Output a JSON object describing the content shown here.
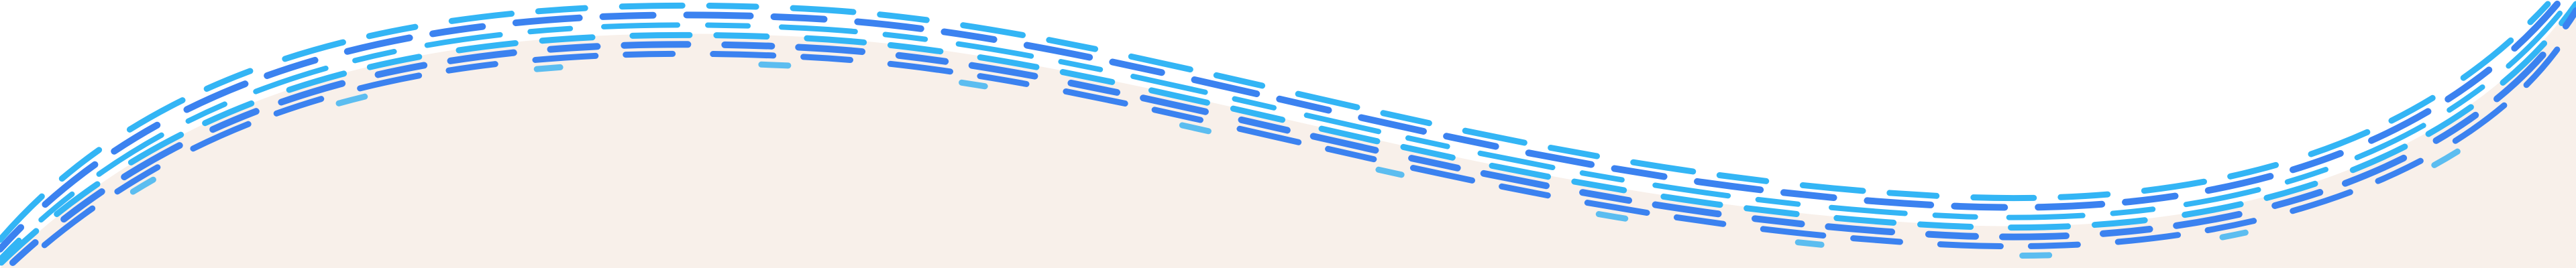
{
  "colors": {
    "background": "#ffffff",
    "fill": "#f8f0ea",
    "dash_dark": "#3b82f0",
    "dash_light": "#33b5f5",
    "dash_pale": "#5cbdf0"
  },
  "decoration": {
    "type": "wave-divider",
    "style": "brush-stroke dashes"
  }
}
